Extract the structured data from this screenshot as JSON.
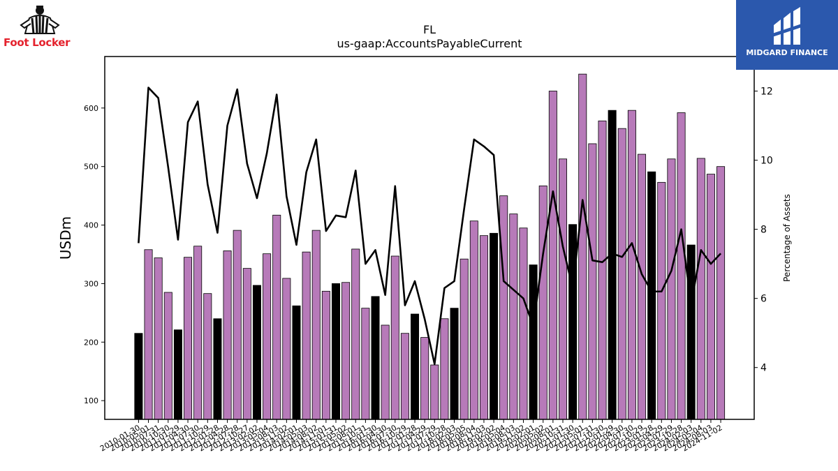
{
  "logos": {
    "left_brand": "Foot Locker",
    "right_brand": "MIDGARD FINANCE"
  },
  "chart_data": {
    "type": "bar+line",
    "title": "FL",
    "subtitle": "us-gaap:AccountsPayableCurrent",
    "ylabel": "USDm",
    "y2label": "Percentage of Assets",
    "ylim": [
      68,
      688
    ],
    "y2lim": [
      2.5,
      13.0
    ],
    "yticks": [
      100,
      200,
      300,
      400,
      500,
      600
    ],
    "y2ticks": [
      4,
      6,
      8,
      10,
      12
    ],
    "bar_color": "#b77ab9",
    "highlight_color": "#000000",
    "line_color": "#000000",
    "categories": [
      "2010-01-30",
      "2010-05-01",
      "2010-07-31",
      "2010-10-30",
      "2011-01-29",
      "2011-04-30",
      "2011-07-30",
      "2011-10-29",
      "2012-01-28",
      "2012-04-28",
      "2012-07-28",
      "2012-10-27",
      "2013-02-02",
      "2013-05-04",
      "2013-08-03",
      "2013-11-02",
      "2014-02-01",
      "2014-05-03",
      "2014-08-02",
      "2014-11-01",
      "2015-01-31",
      "2015-05-02",
      "2015-08-01",
      "2015-10-31",
      "2016-01-30",
      "2016-04-30",
      "2016-07-30",
      "2016-10-29",
      "2017-01-28",
      "2017-04-29",
      "2017-07-29",
      "2017-10-28",
      "2018-02-03",
      "2018-05-05",
      "2018-08-04",
      "2018-11-03",
      "2019-02-02",
      "2019-05-04",
      "2019-08-03",
      "2019-11-02",
      "2020-02-01",
      "2020-05-02",
      "2020-08-01",
      "2020-10-31",
      "2021-01-30",
      "2021-05-01",
      "2021-07-31",
      "2021-10-30",
      "2022-01-29",
      "2022-04-30",
      "2022-07-30",
      "2022-10-29",
      "2023-01-28",
      "2023-04-29",
      "2023-07-29",
      "2023-10-28",
      "2024-02-03",
      "2024-05-04",
      "2024-08-03",
      "2024-11-02"
    ],
    "tick_labels": [
      "2010-01-30",
      "2010-05-01",
      "2010-07-31",
      "2010-10-30",
      "2011-01-29",
      "2011-04-30",
      "2011-07-30",
      "2011-10-29",
      "2012-01-28",
      "2012-04-28",
      "2012-07-28",
      "2012-10-27",
      "2013-02-02",
      "2013-05-04",
      "2013-08-03",
      "2013-11-02",
      "2014-02-01",
      "2014-05-03",
      "2014-08-02",
      "2014-11-01",
      "2015-01-31",
      "2015-05-02",
      "2015-08-01",
      "2015-10-31",
      "2016-01-30",
      "2016-04-30",
      "2016-07-30",
      "2016-10-29",
      "2017-01-28",
      "2017-04-29",
      "2017-07-29",
      "2017-10-28",
      "2018-02-03",
      "2018-05-05",
      "2018-08-04",
      "2018-11-03",
      "2019-02-02",
      "2019-05-04",
      "2019-08-03",
      "2019-11-02",
      "2020-02-01",
      "2020-05-02",
      "2020-08-01",
      "2020-10-31",
      "2021-01-30",
      "2021-05-01",
      "2021-07-31",
      "2021-10-30",
      "2022-01-29",
      "2022-04-30",
      "2022-07-30",
      "2022-10-29",
      "2023-01-28",
      "2023-04-29",
      "2023-07-29",
      "2023-10-28",
      "2024-02-03",
      "2024-05-04",
      "2024-08-03",
      "2024-11-02"
    ],
    "highlighted": [
      0,
      4,
      8,
      12,
      16,
      20,
      24,
      28,
      32,
      36,
      40,
      44,
      48,
      52,
      56
    ],
    "series": [
      {
        "type": "bar",
        "axis": "left",
        "values": [
          215,
          358,
          344,
          285,
          221,
          345,
          364,
          283,
          240,
          356,
          391,
          326,
          297,
          351,
          417,
          309,
          262,
          354,
          391,
          287,
          300,
          302,
          359,
          258,
          278,
          229,
          347,
          215,
          248,
          208,
          161,
          240,
          258,
          342,
          407,
          382,
          386,
          450,
          419,
          395,
          332,
          467,
          629,
          513,
          401,
          658,
          539,
          578,
          596,
          565,
          596,
          521,
          491,
          473,
          513,
          592,
          366,
          514,
          487,
          500
        ]
      },
      {
        "type": "line",
        "axis": "right",
        "values": [
          7.6,
          12.1,
          11.8,
          9.8,
          7.7,
          11.1,
          11.7,
          9.3,
          7.9,
          11.0,
          12.05,
          9.9,
          8.9,
          10.2,
          11.9,
          8.95,
          7.55,
          9.65,
          10.6,
          7.95,
          8.4,
          8.35,
          9.7,
          7.0,
          7.4,
          6.1,
          9.25,
          5.8,
          6.5,
          5.4,
          4.1,
          6.3,
          6.5,
          8.6,
          10.6,
          10.4,
          10.15,
          6.5,
          6.25,
          6.0,
          5.2,
          7.3,
          9.1,
          7.5,
          6.3,
          8.85,
          7.1,
          7.05,
          7.3,
          7.2,
          7.6,
          6.7,
          6.2,
          6.2,
          6.8,
          8.0,
          5.85,
          7.4,
          7.0,
          7.3
        ]
      }
    ]
  }
}
